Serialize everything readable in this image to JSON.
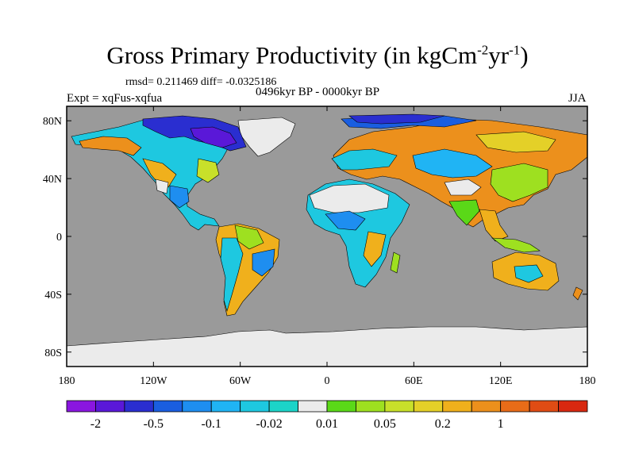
{
  "header": {
    "title": "Gross Primary Productivity (in kgCm",
    "title_sup1": "-2",
    "title_mid": "yr",
    "title_sup2": "-1",
    "title_end": ")",
    "stats": "rmsd= 0.211469 diff= -0.0325186",
    "period": "0496kyr BP - 0000kyr BP",
    "experiment": "Expt = xqFus-xqfua",
    "season": "JJA"
  },
  "colors": {
    "ocean": "#9a9a9a",
    "ice": "#ebebeb",
    "coast": "#000000"
  },
  "chart_data": {
    "type": "heatmap",
    "title": "Gross Primary Productivity (in kgCm-2yr-1)",
    "subtitle": "rmsd= 0.211469 diff= -0.0325186",
    "xlabel": "",
    "ylabel": "",
    "xlim": [
      -180,
      180
    ],
    "ylim": [
      -90,
      90
    ],
    "lat_ticks": [
      {
        "value": 80,
        "label": "80N"
      },
      {
        "value": 40,
        "label": "40N"
      },
      {
        "value": 0,
        "label": "0"
      },
      {
        "value": -40,
        "label": "40S"
      },
      {
        "value": -80,
        "label": "80S"
      }
    ],
    "lon_ticks": [
      {
        "value": -180,
        "label": "180"
      },
      {
        "value": -120,
        "label": "120W"
      },
      {
        "value": -60,
        "label": "60W"
      },
      {
        "value": 0,
        "label": "0"
      },
      {
        "value": 60,
        "label": "60E"
      },
      {
        "value": 120,
        "label": "120E"
      },
      {
        "value": 180,
        "label": "180"
      }
    ],
    "colorbar": {
      "colors": [
        "#8a16e0",
        "#5a18d8",
        "#2a2ed0",
        "#1a5ee0",
        "#1e8ef0",
        "#20b4f4",
        "#1ec8e0",
        "#1cd4c8",
        "#ebebeb",
        "#5ad818",
        "#9ee020",
        "#c8e02a",
        "#e4d028",
        "#f0b01c",
        "#ec901c",
        "#e86c18",
        "#e04c14",
        "#d82810"
      ],
      "labels": [
        {
          "boundary": 1,
          "text": "-2"
        },
        {
          "boundary": 3,
          "text": "-0.5"
        },
        {
          "boundary": 5,
          "text": "-0.1"
        },
        {
          "boundary": 7,
          "text": "-0.02"
        },
        {
          "boundary": 9,
          "text": "0.01"
        },
        {
          "boundary": 11,
          "text": "0.05"
        },
        {
          "boundary": 13,
          "text": "0.2"
        },
        {
          "boundary": 15,
          "text": "1"
        }
      ]
    }
  }
}
